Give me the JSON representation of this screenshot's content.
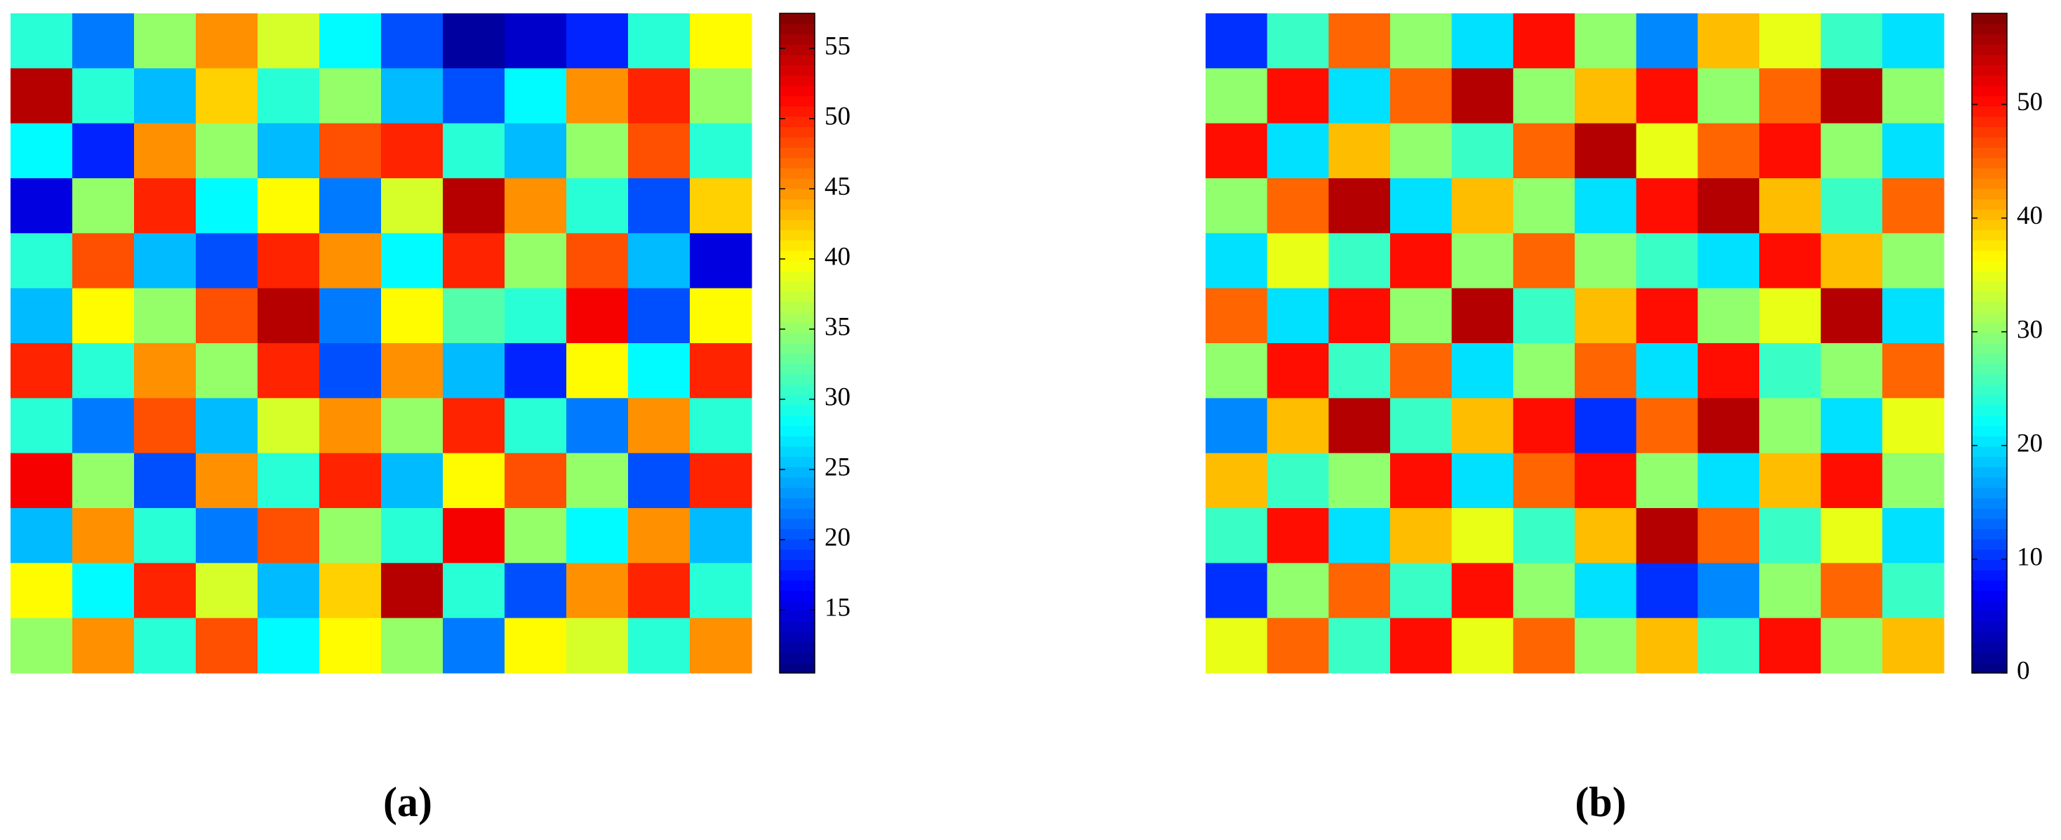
{
  "chart_data": [
    {
      "type": "heatmap",
      "label": "(a)",
      "colormap": "jet",
      "z": [
        [
          30,
          22,
          35,
          45,
          38,
          28,
          20,
          12,
          14,
          18,
          30,
          40
        ],
        [
          55,
          30,
          25,
          42,
          30,
          35,
          25,
          20,
          28,
          45,
          50,
          35
        ],
        [
          28,
          18,
          45,
          35,
          25,
          48,
          50,
          30,
          25,
          35,
          48,
          30
        ],
        [
          15,
          35,
          50,
          28,
          40,
          22,
          38,
          55,
          45,
          30,
          20,
          42
        ],
        [
          30,
          48,
          25,
          20,
          50,
          45,
          28,
          50,
          35,
          48,
          25,
          15
        ],
        [
          25,
          40,
          35,
          48,
          55,
          22,
          40,
          32,
          30,
          52,
          20,
          40
        ],
        [
          50,
          30,
          45,
          35,
          50,
          20,
          45,
          25,
          18,
          40,
          28,
          50
        ],
        [
          30,
          22,
          48,
          25,
          38,
          45,
          35,
          50,
          30,
          22,
          45,
          30
        ],
        [
          52,
          35,
          20,
          45,
          30,
          50,
          25,
          40,
          48,
          35,
          20,
          50
        ],
        [
          25,
          45,
          30,
          22,
          48,
          35,
          30,
          52,
          35,
          28,
          45,
          25
        ],
        [
          40,
          28,
          50,
          38,
          25,
          42,
          55,
          30,
          20,
          45,
          50,
          30
        ],
        [
          35,
          45,
          30,
          48,
          28,
          40,
          35,
          22,
          40,
          38,
          30,
          45
        ]
      ],
      "colorbar_lim": [
        10.5,
        57.5
      ],
      "colorbar_ticks": [
        15,
        20,
        25,
        30,
        35,
        40,
        45,
        50,
        55
      ]
    },
    {
      "type": "heatmap",
      "label": "(b)",
      "colormap": "jet",
      "z": [
        [
          10,
          25,
          45,
          30,
          20,
          50,
          30,
          15,
          40,
          35,
          25,
          20
        ],
        [
          30,
          50,
          20,
          45,
          55,
          30,
          40,
          50,
          30,
          45,
          55,
          30
        ],
        [
          50,
          20,
          40,
          30,
          25,
          45,
          55,
          35,
          45,
          50,
          30,
          20
        ],
        [
          30,
          45,
          55,
          20,
          40,
          30,
          20,
          50,
          55,
          40,
          25,
          45
        ],
        [
          20,
          35,
          25,
          50,
          30,
          45,
          30,
          25,
          20,
          50,
          40,
          30
        ],
        [
          45,
          20,
          50,
          30,
          55,
          25,
          40,
          50,
          30,
          35,
          55,
          20
        ],
        [
          30,
          50,
          25,
          45,
          20,
          30,
          45,
          20,
          50,
          25,
          30,
          45
        ],
        [
          15,
          40,
          55,
          25,
          40,
          50,
          10,
          45,
          55,
          30,
          20,
          35
        ],
        [
          40,
          25,
          30,
          50,
          20,
          45,
          50,
          30,
          20,
          40,
          50,
          30
        ],
        [
          25,
          50,
          20,
          40,
          35,
          25,
          40,
          55,
          45,
          25,
          35,
          20
        ],
        [
          10,
          30,
          45,
          25,
          50,
          30,
          20,
          10,
          15,
          30,
          45,
          25
        ],
        [
          35,
          45,
          25,
          50,
          35,
          45,
          30,
          40,
          25,
          50,
          30,
          40
        ]
      ],
      "colorbar_lim": [
        0,
        58
      ],
      "colorbar_ticks": [
        0,
        10,
        20,
        30,
        40,
        50
      ]
    }
  ]
}
